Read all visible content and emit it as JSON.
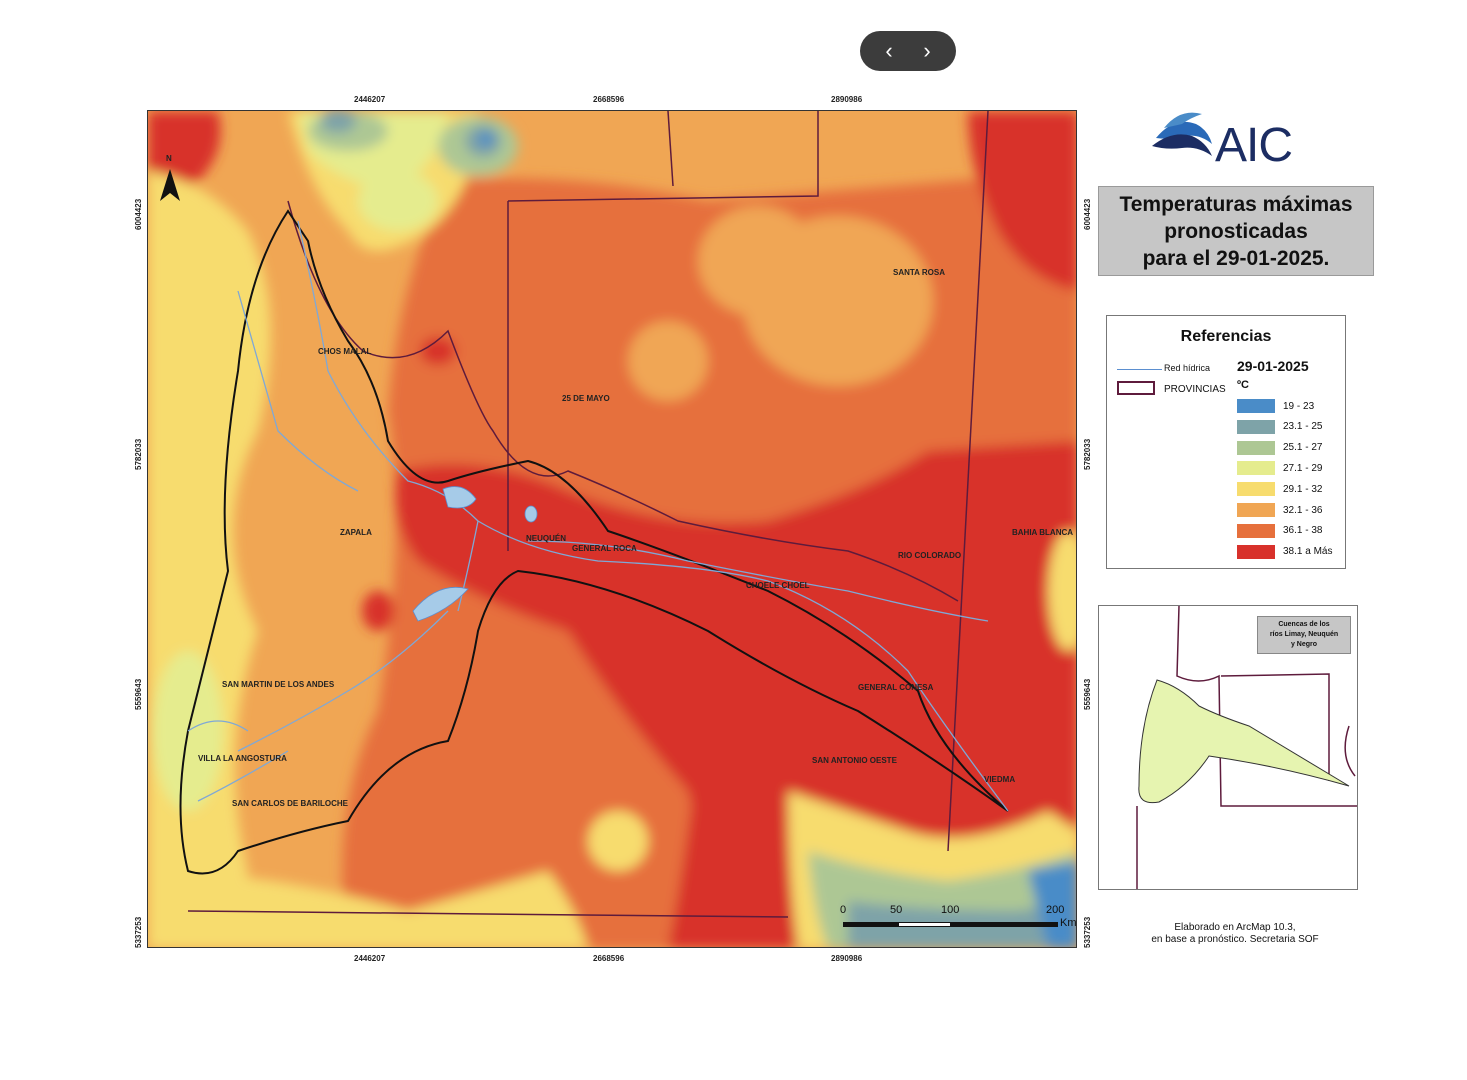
{
  "nav": {
    "prev_label": "‹",
    "next_label": "›"
  },
  "coords": {
    "top_x": [
      "2446207",
      "2668596",
      "2890986"
    ],
    "bottom_x": [
      "2446207",
      "2668596",
      "2890986"
    ],
    "left_y": [
      "6004423",
      "5782033",
      "5559643",
      "5337253"
    ],
    "right_y": [
      "6004423",
      "5782033",
      "5559643",
      "5337253"
    ]
  },
  "map": {
    "north_label": "N",
    "places": {
      "chos_malal": "CHOS MALAL",
      "veinticinco_de_mayo": "25 DE MAYO",
      "santa_rosa": "SANTA ROSA",
      "zapala": "ZAPALA",
      "neuquen": "NEUQUÉN",
      "general_roca": "GENERAL ROCA",
      "rio_colorado": "RIO COLORADO",
      "bahia_blanca": "BAHIA BLANCA",
      "choele_choel": "CHOELE CHOEL",
      "san_martin": "SAN MARTIN DE LOS ANDES",
      "general_conesa": "GENERAL CONESA",
      "villa_la_angostura": "VILLA LA ANGOSTURA",
      "san_antonio_oeste": "SAN ANTONIO OESTE",
      "viedma": "VIEDMA",
      "bariloche": "SAN CARLOS DE BARILOCHE"
    },
    "scale": {
      "labels": [
        "0",
        "50",
        "100",
        "200"
      ],
      "unit": "Km"
    }
  },
  "logo": {
    "text": "AIC",
    "color": "#1c2d63",
    "accent": "#2a6ab8"
  },
  "title": {
    "line1": "Temperaturas máximas",
    "line2": "pronosticadas",
    "line3": "para el 29-01-2025."
  },
  "legend": {
    "title": "Referencias",
    "date": "29-01-2025",
    "unit": "ºC",
    "red_hidrica": "Red hídrica",
    "provincias": "PROVINCIAS",
    "classes": [
      {
        "label": "19 - 23",
        "color": "#4a8cc8"
      },
      {
        "label": "23.1 - 25",
        "color": "#7ea3a8"
      },
      {
        "label": "25.1 - 27",
        "color": "#adc794"
      },
      {
        "label": "27.1 - 29",
        "color": "#e5ec8e"
      },
      {
        "label": "29.1 - 32",
        "color": "#f7dc6e"
      },
      {
        "label": "32.1 - 36",
        "color": "#f0a654"
      },
      {
        "label": "36.1 - 38",
        "color": "#e6703c"
      },
      {
        "label": "38.1 a Más",
        "color": "#d8312b"
      }
    ]
  },
  "inset": {
    "title_line1": "Cuencas de los",
    "title_line2": "ríos Limay, Neuquén",
    "title_line3": "y Negro"
  },
  "credits": {
    "line1": "Elaborado en ArcMap 10.3,",
    "line2": "en base a pronóstico. Secretaria SOF"
  }
}
